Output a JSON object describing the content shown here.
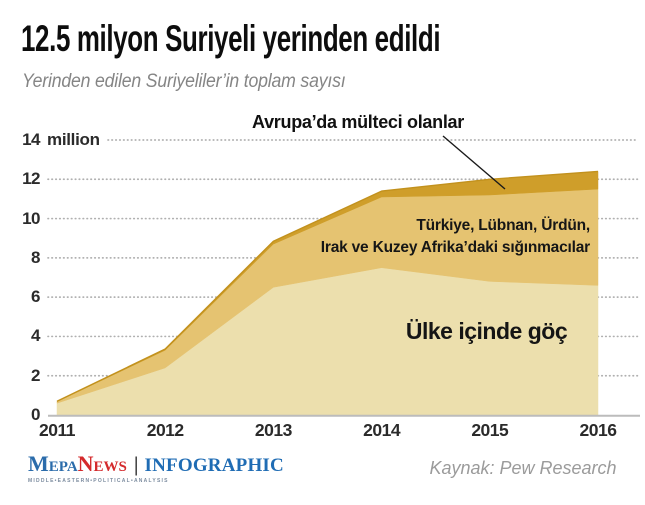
{
  "header": {
    "title": "12.5 milyon Suriyeli yerinden edildi",
    "subtitle": "Yerinden edilen Suriyeliler’in toplam sayısı"
  },
  "chart_data": {
    "type": "area",
    "stacked": true,
    "x": [
      "2011",
      "2012",
      "2013",
      "2014",
      "2015",
      "2016"
    ],
    "unit": "million people",
    "series": [
      {
        "name": "Ülke içinde göç",
        "values": [
          0.6,
          2.4,
          6.5,
          7.5,
          6.8,
          6.6
        ],
        "color": "#ecdfad"
      },
      {
        "name": "Türkiye, Lübnan, Ürdün, Irak ve Kuzey Afrika'daki sığınmacılar",
        "values": [
          0.08,
          0.9,
          2.2,
          3.6,
          4.4,
          4.9
        ],
        "color": "#e5c371"
      },
      {
        "name": "Avrupa'da mülteci olanlar",
        "values": [
          0.02,
          0.06,
          0.15,
          0.3,
          0.8,
          0.9
        ],
        "color": "#cf9e2a"
      }
    ],
    "totals": [
      0.7,
      3.36,
      8.85,
      11.4,
      12.0,
      12.4
    ],
    "ylim": [
      0,
      14
    ],
    "y_ticks": [
      {
        "num": "0"
      },
      {
        "num": "2"
      },
      {
        "num": "4"
      },
      {
        "num": "6"
      },
      {
        "num": "8"
      },
      {
        "num": "10"
      },
      {
        "num": "12"
      },
      {
        "num": "14",
        "suffix": "million"
      }
    ],
    "grid": "dotted horizontal, legend as in-chart annotations",
    "title": "12.5 milyon Suriyeli yerinden edildi",
    "xlabel": "",
    "ylabel": "million"
  },
  "annotations": {
    "europe_label": "Avrupa’da mülteci olanlar",
    "neighbors_label_line1": "Türkiye, Lübnan, Ürdün,",
    "neighbors_label_line2": "Irak ve Kuzey Afrika’daki sığınmacılar",
    "internal_label": "Ülke içinde göç"
  },
  "footer": {
    "logo_mepa": "Mepa",
    "logo_news": "News",
    "logo_separator": "|",
    "logo_suffix": "INFOGRAPHIC",
    "logo_tagline": "MIDDLE•EASTERN•POLITICAL•ANALYSIS",
    "source": "Kaynak: Pew Research"
  },
  "colors": {
    "internal_area": "#ecdfad",
    "neighbors_area": "#e5c371",
    "europe_area": "#cf9e2a",
    "top_edge_stroke": "#c2911d",
    "gridline": "#b0b0b0",
    "axis": "#bcbcbc",
    "pointer_line": "#1a1a1a",
    "logo_blue": "#2b6cab",
    "logo_red": "#d42a2c"
  }
}
